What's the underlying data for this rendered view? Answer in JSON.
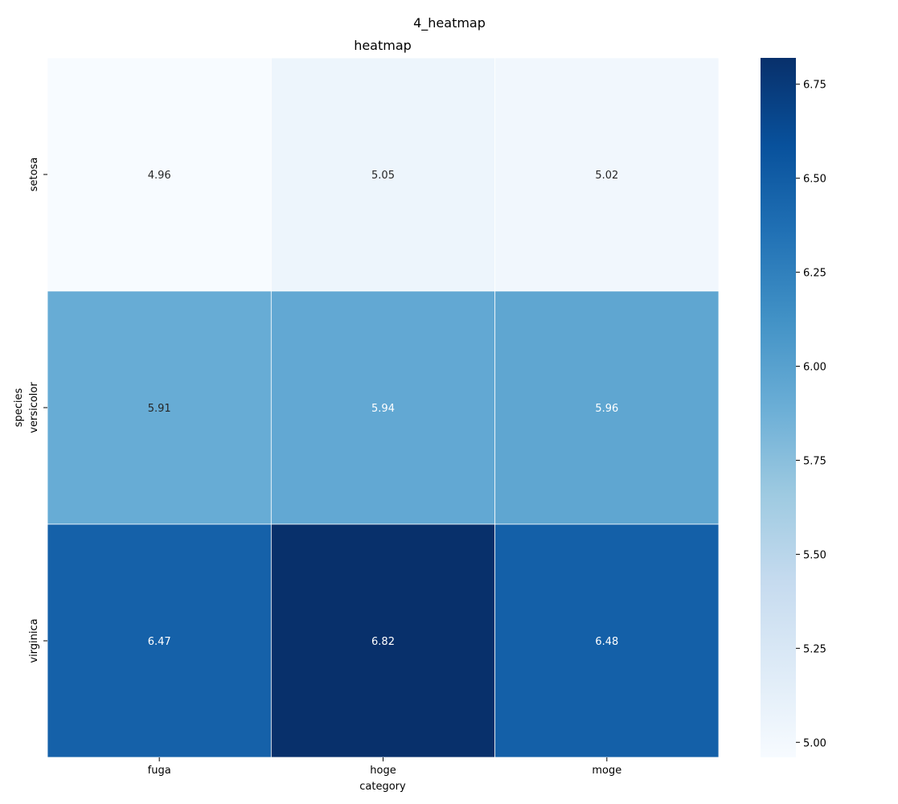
{
  "chart_data": {
    "type": "heatmap",
    "suptitle": "4_heatmap",
    "title": "heatmap",
    "xlabel": "category",
    "ylabel": "species",
    "x_categories": [
      "fuga",
      "hoge",
      "moge"
    ],
    "y_categories": [
      "setosa",
      "versicolor",
      "virginica"
    ],
    "values": [
      [
        4.96,
        5.05,
        5.02
      ],
      [
        5.91,
        5.94,
        5.96
      ],
      [
        6.47,
        6.82,
        6.48
      ]
    ],
    "colormap": "Blues",
    "value_range": [
      4.96,
      6.82
    ],
    "colorbar_ticks": [
      "5.00",
      "5.25",
      "5.50",
      "5.75",
      "6.00",
      "6.25",
      "6.50",
      "6.75"
    ],
    "annotations": true,
    "grid": false
  }
}
